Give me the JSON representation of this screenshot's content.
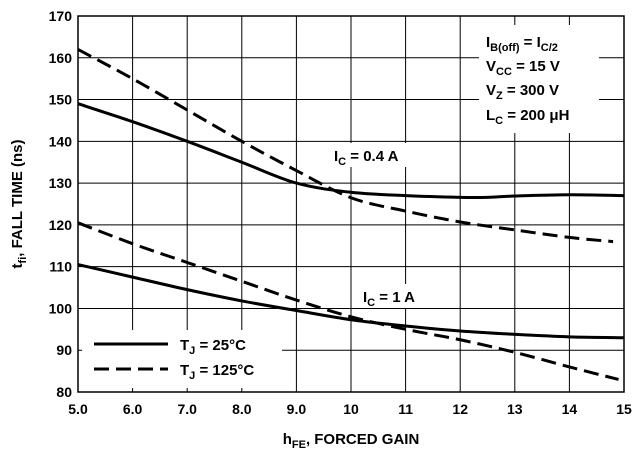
{
  "chart_data": {
    "type": "line",
    "xlabel": {
      "main": "h",
      "sub": "FE",
      "rest": ", FORCED GAIN"
    },
    "ylabel": {
      "main": "t",
      "sub": "fi",
      "rest": ", FALL TIME (ns)"
    },
    "xlim": [
      5,
      15
    ],
    "ylim": [
      80,
      170
    ],
    "x_ticks": [
      5,
      6,
      7,
      8,
      9,
      10,
      11,
      12,
      13,
      14,
      15
    ],
    "x_tick_labels": [
      "5.0",
      "6.0",
      "7.0",
      "8.0",
      "9.0",
      "10",
      "11",
      "12",
      "13",
      "14",
      "15"
    ],
    "y_ticks": [
      80,
      90,
      100,
      110,
      120,
      130,
      140,
      150,
      160,
      170
    ],
    "y_tick_labels": [
      "80",
      "90",
      "100",
      "110",
      "120",
      "130",
      "140",
      "150",
      "160",
      "170"
    ],
    "grid": true,
    "series": [
      {
        "name": "T_J = 25°C, I_C = 0.4 A",
        "style": "solid",
        "x": [
          5,
          6,
          7,
          8,
          9,
          10,
          11,
          12,
          12.5,
          13,
          14,
          15
        ],
        "y": [
          149,
          144.7,
          140,
          135,
          130,
          127.8,
          127,
          126.6,
          126.6,
          126.9,
          127.2,
          127
        ]
      },
      {
        "name": "T_J = 125°C, I_C = 0.4 A",
        "style": "dashed",
        "x": [
          5,
          6,
          7,
          8,
          9,
          10,
          11,
          12,
          13,
          14,
          14.8
        ],
        "y": [
          162,
          155,
          147.5,
          140,
          133,
          126.5,
          123.3,
          120.7,
          118.8,
          117,
          116
        ]
      },
      {
        "name": "T_J = 25°C, I_C = 1 A",
        "style": "solid",
        "x": [
          5,
          6,
          7,
          8,
          9,
          10,
          11,
          12,
          13,
          14,
          15
        ],
        "y": [
          110.5,
          107.5,
          104.5,
          101.8,
          99.5,
          97.3,
          95.8,
          94.6,
          93.8,
          93.2,
          93
        ]
      },
      {
        "name": "T_J = 125°C, I_C = 1 A",
        "style": "dashed",
        "x": [
          5,
          6,
          7,
          8,
          9,
          10,
          11,
          12,
          13,
          14,
          14.9
        ],
        "y": [
          120.5,
          115.5,
          111,
          106.5,
          102,
          98,
          95,
          92.5,
          89.5,
          86,
          83
        ]
      }
    ],
    "legend": {
      "placement": "bottom-left",
      "items": [
        {
          "label": "T",
          "sub": "J",
          "rest": " = 25°C",
          "style": "solid"
        },
        {
          "label": "T",
          "sub": "J",
          "rest": " = 125°C",
          "style": "dashed"
        }
      ]
    },
    "annotations": {
      "conditions": [
        {
          "main": "I",
          "sub": "B(off)",
          "rest": " = I",
          "sub2": "C/2"
        },
        {
          "main": "V",
          "sub": "CC",
          "rest": " = 15 V"
        },
        {
          "main": "V",
          "sub": "Z",
          "rest": " = 300 V"
        },
        {
          "main": "L",
          "sub": "C",
          "rest": " = 200 μH"
        }
      ],
      "curve_labels": [
        {
          "main": "I",
          "sub": "C",
          "rest": " = 0.4 A"
        },
        {
          "main": "I",
          "sub": "C",
          "rest": " = 1 A"
        }
      ]
    }
  }
}
